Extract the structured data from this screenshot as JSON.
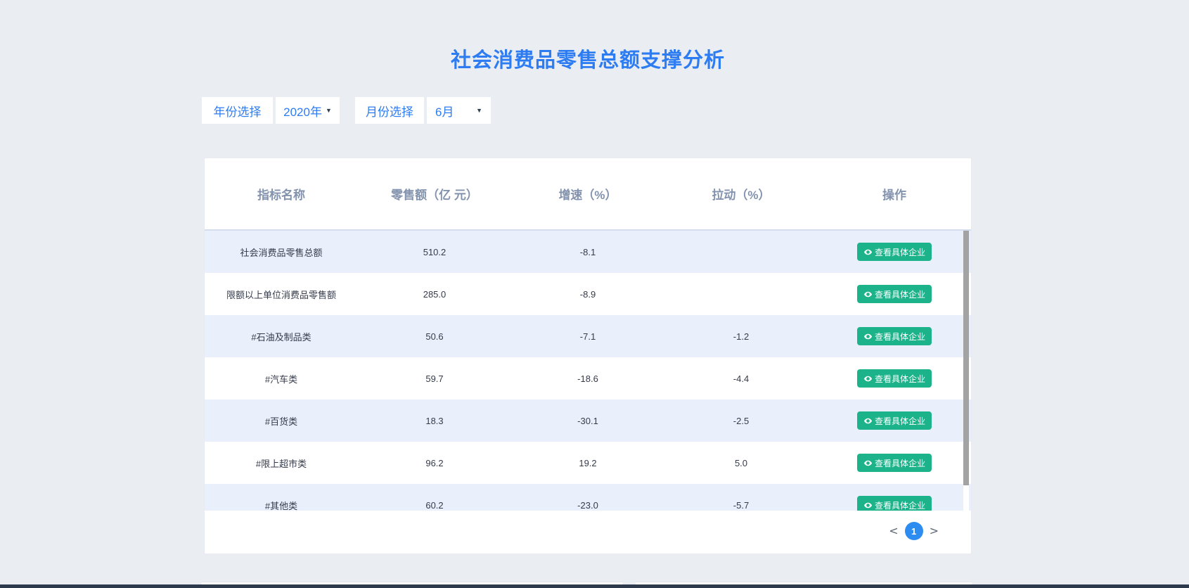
{
  "page": {
    "title": "社会消费品零售总额支撑分析"
  },
  "filters": {
    "year_label": "年份选择",
    "year_value": "2020年",
    "month_label": "月份选择",
    "month_value": "6月",
    "caret_glyph": "▼"
  },
  "table": {
    "columns": [
      "指标名称",
      "零售额（亿 元）",
      "增速（%）",
      "拉动（%）",
      "操作"
    ],
    "action_label": "查看具体企业",
    "rows": [
      {
        "name": "社会消费品零售总额",
        "retail": "510.2",
        "growth": "-8.1",
        "pull": ""
      },
      {
        "name": "限额以上单位消费品零售额",
        "retail": "285.0",
        "growth": "-8.9",
        "pull": ""
      },
      {
        "name": "#石油及制品类",
        "retail": "50.6",
        "growth": "-7.1",
        "pull": "-1.2"
      },
      {
        "name": "#汽车类",
        "retail": "59.7",
        "growth": "-18.6",
        "pull": "-4.4"
      },
      {
        "name": "#百货类",
        "retail": "18.3",
        "growth": "-30.1",
        "pull": "-2.5"
      },
      {
        "name": "#限上超市类",
        "retail": "96.2",
        "growth": "19.2",
        "pull": "5.0"
      },
      {
        "name": "#其他类",
        "retail": "60.2",
        "growth": "-23.0",
        "pull": "-5.7"
      }
    ]
  },
  "pagination": {
    "prev": "<",
    "current_page": "1",
    "next": ">"
  },
  "colors": {
    "accent_blue": "#2D7CF2",
    "pagination_blue": "#2D8CF0",
    "action_green": "#1CB28A",
    "stripe_blue": "#E9F0FB",
    "header_text": "#8393AE",
    "bottom_bar_navy": "#2D3A4D",
    "background": "#EAEDF2"
  }
}
